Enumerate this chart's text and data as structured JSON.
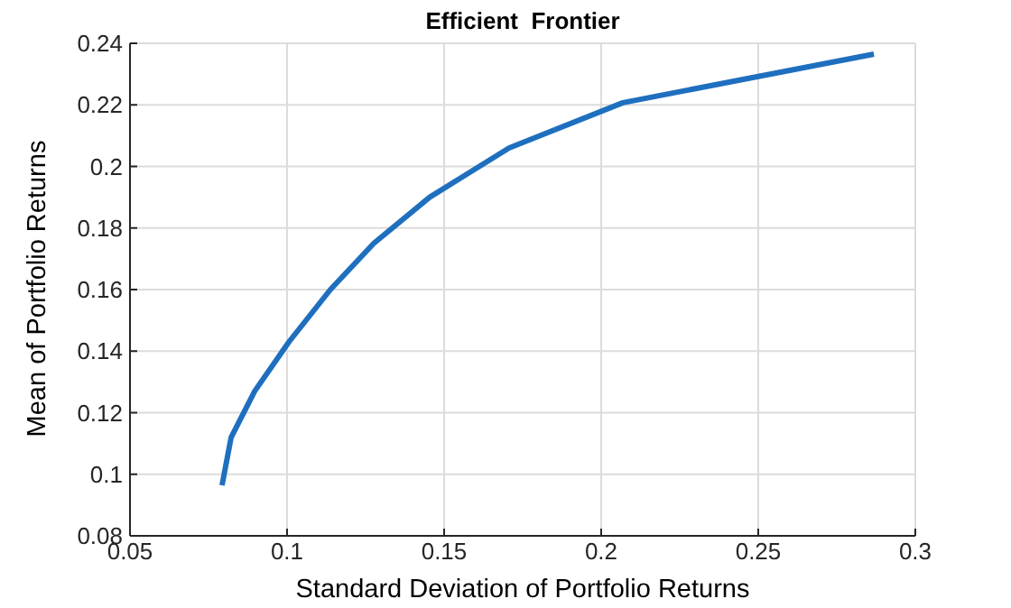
{
  "chart_data": {
    "type": "line",
    "title": "Efficient  Frontier",
    "xlabel": "Standard Deviation of Portfolio Returns",
    "ylabel": "Mean of Portfolio Returns",
    "x": [
      0.0793,
      0.0822,
      0.0897,
      0.1006,
      0.1138,
      0.1276,
      0.1454,
      0.1707,
      0.2069,
      0.2868
    ],
    "series": [
      {
        "color": "#1f6fbf",
        "values": [
          0.0964,
          0.112,
          0.127,
          0.143,
          0.16,
          0.175,
          0.19,
          0.206,
          0.2207,
          0.2365
        ]
      }
    ],
    "xlim": [
      0.05,
      0.3
    ],
    "xticks": [
      0.05,
      0.1,
      0.15,
      0.2,
      0.25,
      0.3
    ],
    "ylim": [
      0.08,
      0.24
    ],
    "yticks": [
      0.08,
      0.1,
      0.12,
      0.14,
      0.16,
      0.18,
      0.2,
      0.22,
      0.24
    ],
    "grid": true,
    "marker": "none",
    "line_style": "solid"
  }
}
